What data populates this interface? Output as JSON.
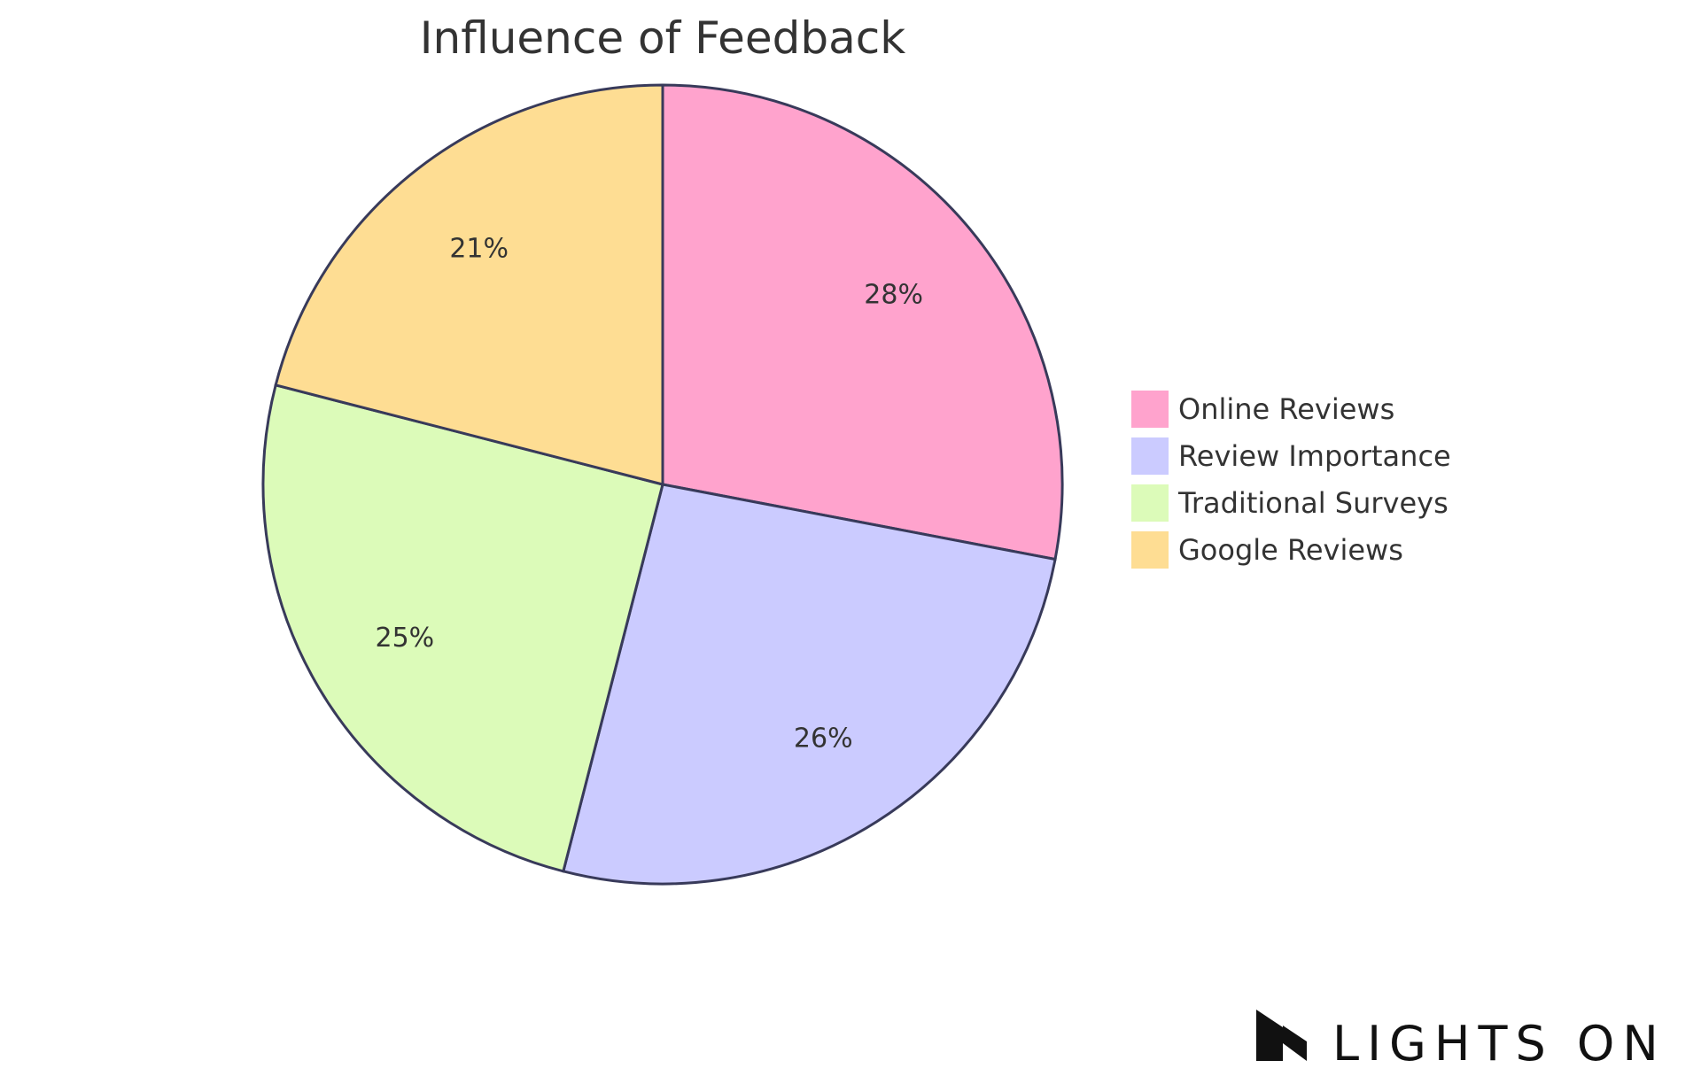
{
  "chart_data": {
    "type": "pie",
    "title": "Influence of Feedback",
    "slices": [
      {
        "name": "Online Reviews",
        "value": 28,
        "label": "28%",
        "color": "#ffa3cd"
      },
      {
        "name": "Review Importance",
        "value": 26,
        "label": "26%",
        "color": "#cbcbff"
      },
      {
        "name": "Traditional Surveys",
        "value": 25,
        "label": "25%",
        "color": "#dcfbb9"
      },
      {
        "name": "Google Reviews",
        "value": 21,
        "label": "21%",
        "color": "#fedd93"
      }
    ],
    "legend_position": "right"
  },
  "brand": {
    "name": "LIGHTS ON",
    "icon": "lights-on-logo-icon"
  }
}
